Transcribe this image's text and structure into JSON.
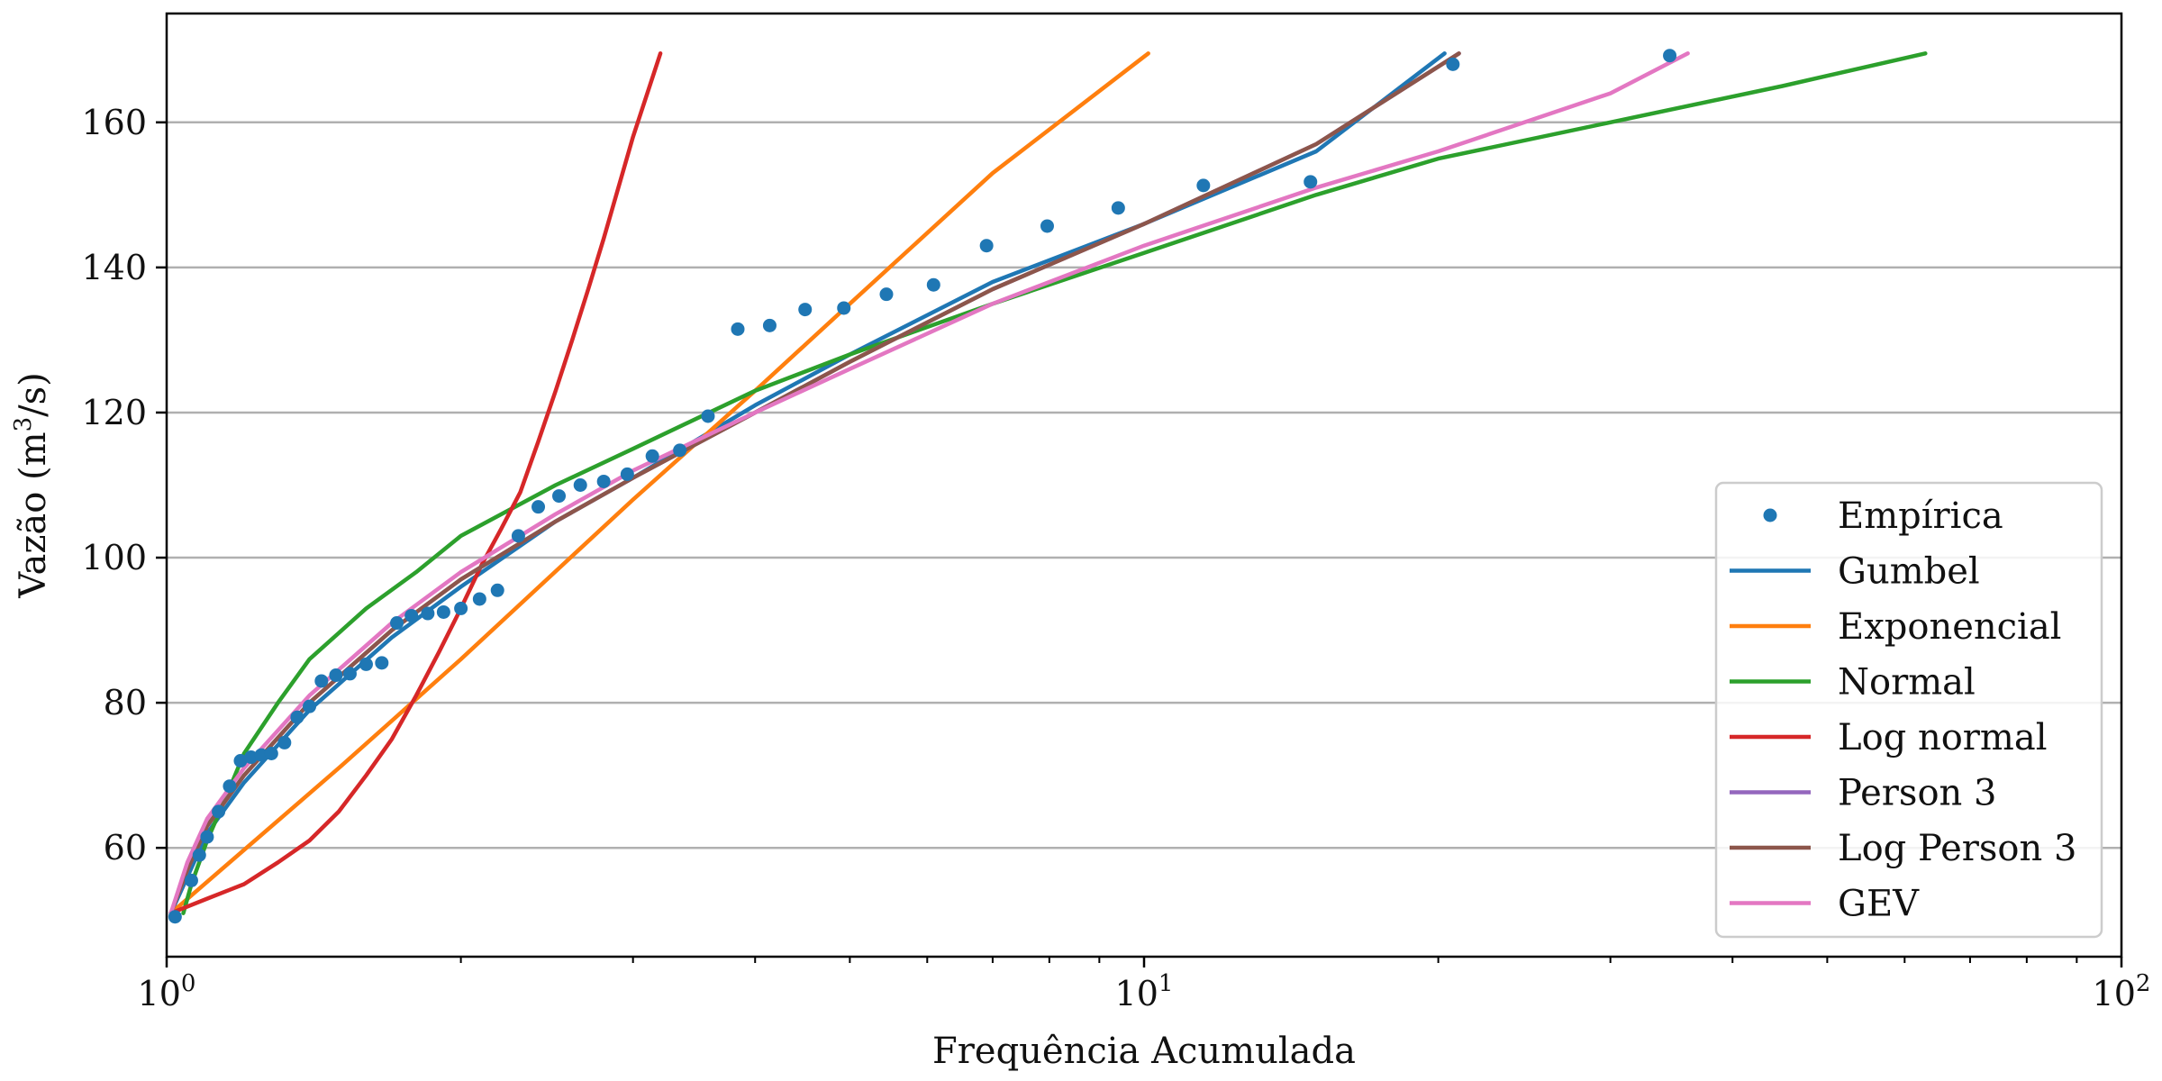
{
  "chart_data": {
    "type": "line",
    "xlabel": "Frequência Acumulada",
    "ylabel": "Vazão (m³/s)",
    "ylabel_base": "Vazão (m",
    "ylabel_sup": "3",
    "ylabel_tail": "/s)",
    "xscale": "log",
    "xlim": [
      1,
      100
    ],
    "ylim": [
      45,
      175
    ],
    "x_ticks": [
      {
        "value": 1,
        "base": "10",
        "exp": "0"
      },
      {
        "value": 10,
        "base": "10",
        "exp": "1"
      },
      {
        "value": 100,
        "base": "10",
        "exp": "2"
      }
    ],
    "y_ticks": [
      60,
      80,
      100,
      120,
      140,
      160
    ],
    "grid": "y-major",
    "legend_position": "lower-right",
    "scatter": {
      "name": "Empírica",
      "color": "#1f77b4",
      "points": [
        [
          1.02,
          50.5
        ],
        [
          1.06,
          55.5
        ],
        [
          1.08,
          59
        ],
        [
          1.1,
          61.5
        ],
        [
          1.13,
          65
        ],
        [
          1.16,
          68.5
        ],
        [
          1.19,
          72
        ],
        [
          1.22,
          72.5
        ],
        [
          1.25,
          72.8
        ],
        [
          1.28,
          73
        ],
        [
          1.32,
          74.5
        ],
        [
          1.36,
          78
        ],
        [
          1.4,
          79.5
        ],
        [
          1.44,
          83
        ],
        [
          1.49,
          83.8
        ],
        [
          1.54,
          84
        ],
        [
          1.6,
          85.3
        ],
        [
          1.66,
          85.5
        ],
        [
          1.72,
          91
        ],
        [
          1.78,
          92
        ],
        [
          1.85,
          92.3
        ],
        [
          1.92,
          92.5
        ],
        [
          2.0,
          93
        ],
        [
          2.09,
          94.3
        ],
        [
          2.18,
          95.5
        ],
        [
          2.29,
          103
        ],
        [
          2.4,
          107
        ],
        [
          2.52,
          108.5
        ],
        [
          2.65,
          110
        ],
        [
          2.8,
          110.5
        ],
        [
          2.96,
          111.5
        ],
        [
          3.14,
          114
        ],
        [
          3.35,
          114.8
        ],
        [
          3.58,
          119.5
        ],
        [
          3.84,
          131.5
        ],
        [
          4.14,
          132
        ],
        [
          4.5,
          134.2
        ],
        [
          4.93,
          134.4
        ],
        [
          5.45,
          136.3
        ],
        [
          6.09,
          137.6
        ],
        [
          6.9,
          143
        ],
        [
          7.96,
          145.7
        ],
        [
          9.41,
          148.2
        ],
        [
          11.5,
          151.3
        ],
        [
          14.8,
          151.8
        ],
        [
          20.7,
          168
        ],
        [
          34.5,
          169.2
        ]
      ]
    },
    "series": [
      {
        "name": "Gumbel",
        "color": "#1f77b4",
        "points": [
          [
            1.01,
            51
          ],
          [
            1.05,
            56
          ],
          [
            1.1,
            62
          ],
          [
            1.2,
            69
          ],
          [
            1.4,
            79
          ],
          [
            1.7,
            89
          ],
          [
            2.0,
            96
          ],
          [
            2.5,
            105
          ],
          [
            3.0,
            111
          ],
          [
            4.0,
            121
          ],
          [
            5.0,
            128
          ],
          [
            7.0,
            138
          ],
          [
            10,
            146
          ],
          [
            15,
            156
          ],
          [
            20.3,
            169.5
          ]
        ]
      },
      {
        "name": "Exponencial",
        "color": "#ff7f0e",
        "points": [
          [
            1.01,
            51
          ],
          [
            1.5,
            71
          ],
          [
            2.0,
            86
          ],
          [
            3.0,
            108
          ],
          [
            4.0,
            123
          ],
          [
            5.0,
            135
          ],
          [
            7.0,
            153
          ],
          [
            10.1,
            169.5
          ]
        ]
      },
      {
        "name": "Normal",
        "color": "#2ca02c",
        "points": [
          [
            1.04,
            51
          ],
          [
            1.06,
            55
          ],
          [
            1.1,
            61
          ],
          [
            1.15,
            67
          ],
          [
            1.2,
            73
          ],
          [
            1.3,
            80
          ],
          [
            1.4,
            86
          ],
          [
            1.6,
            93
          ],
          [
            1.8,
            98
          ],
          [
            2.0,
            103
          ],
          [
            2.5,
            110
          ],
          [
            3.0,
            115
          ],
          [
            4.0,
            123
          ],
          [
            5.0,
            128
          ],
          [
            7.0,
            135
          ],
          [
            10,
            142
          ],
          [
            15,
            150
          ],
          [
            20,
            155
          ],
          [
            30,
            160
          ],
          [
            45,
            165
          ],
          [
            63,
            169.5
          ]
        ]
      },
      {
        "name": "Log normal",
        "color": "#d62728",
        "points": [
          [
            1.01,
            51
          ],
          [
            1.1,
            53
          ],
          [
            1.2,
            55
          ],
          [
            1.3,
            58
          ],
          [
            1.4,
            61
          ],
          [
            1.5,
            65
          ],
          [
            1.6,
            70
          ],
          [
            1.7,
            75
          ],
          [
            1.8,
            81
          ],
          [
            1.9,
            87
          ],
          [
            2.0,
            93
          ],
          [
            2.1,
            99
          ],
          [
            2.2,
            104
          ],
          [
            2.3,
            109
          ],
          [
            2.4,
            116
          ],
          [
            2.5,
            123
          ],
          [
            2.6,
            130
          ],
          [
            2.7,
            137
          ],
          [
            2.8,
            144
          ],
          [
            3.0,
            158
          ],
          [
            3.2,
            169.5
          ]
        ]
      },
      {
        "name": "Person 3",
        "color": "#9467bd",
        "points": [
          [
            1.01,
            51
          ],
          [
            1.05,
            57
          ],
          [
            1.1,
            63
          ],
          [
            1.2,
            70
          ],
          [
            1.4,
            80
          ],
          [
            1.7,
            90
          ],
          [
            2.0,
            97
          ],
          [
            2.5,
            105
          ],
          [
            3.0,
            111
          ],
          [
            4.0,
            120
          ],
          [
            5.0,
            127
          ],
          [
            7.0,
            137
          ],
          [
            10,
            146
          ],
          [
            15,
            157
          ],
          [
            21,
            169.5
          ]
        ]
      },
      {
        "name": "Log Person 3",
        "color": "#8c564b",
        "points": [
          [
            1.01,
            51
          ],
          [
            1.05,
            57
          ],
          [
            1.1,
            63
          ],
          [
            1.2,
            70
          ],
          [
            1.4,
            80
          ],
          [
            1.7,
            90
          ],
          [
            2.0,
            97
          ],
          [
            2.5,
            105
          ],
          [
            3.0,
            111
          ],
          [
            4.0,
            120
          ],
          [
            5.0,
            127
          ],
          [
            7.0,
            137
          ],
          [
            10,
            146
          ],
          [
            15,
            157
          ],
          [
            21,
            169.5
          ]
        ]
      },
      {
        "name": "GEV",
        "color": "#e377c2",
        "points": [
          [
            1.01,
            51
          ],
          [
            1.05,
            58
          ],
          [
            1.1,
            64
          ],
          [
            1.2,
            71
          ],
          [
            1.4,
            81
          ],
          [
            1.7,
            91
          ],
          [
            2.0,
            98
          ],
          [
            2.5,
            106
          ],
          [
            3.0,
            112
          ],
          [
            4.0,
            120
          ],
          [
            5.0,
            126
          ],
          [
            7.0,
            135
          ],
          [
            10,
            143
          ],
          [
            15,
            151
          ],
          [
            20,
            156
          ],
          [
            30,
            164
          ],
          [
            36,
            169.5
          ]
        ]
      }
    ],
    "legend": [
      "Empírica",
      "Gumbel",
      "Exponencial",
      "Normal",
      "Log normal",
      "Person 3",
      "Log Person 3",
      "GEV"
    ]
  }
}
